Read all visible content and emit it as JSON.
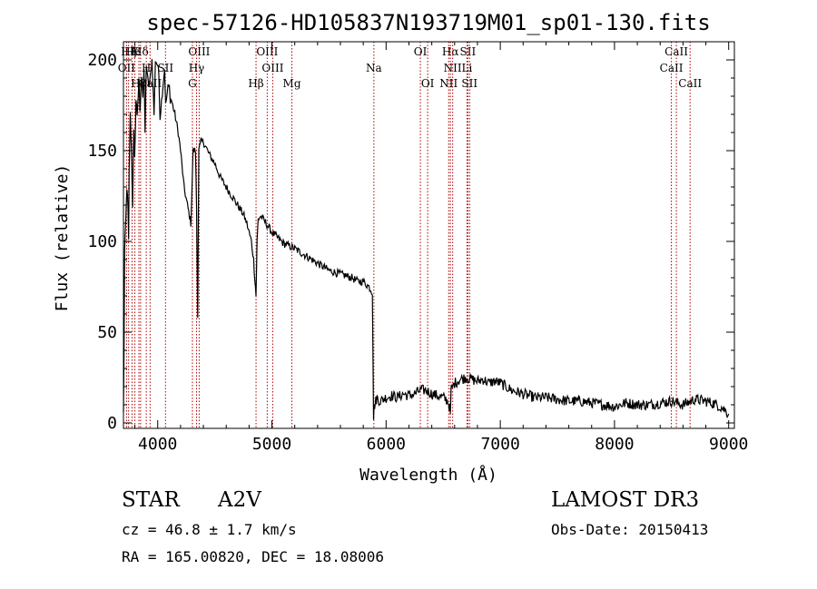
{
  "chart_data": {
    "type": "line",
    "title": "spec-57126-HD105837N193719M01_sp01-130.fits",
    "xlabel": "Wavelength (Å)",
    "ylabel": "Flux (relative)",
    "xlim": [
      3700,
      9050
    ],
    "ylim": [
      -3,
      210
    ],
    "x_ticks": [
      4000,
      5000,
      6000,
      7000,
      8000,
      9000
    ],
    "y_ticks": [
      0,
      50,
      100,
      150,
      200
    ],
    "series": [
      {
        "name": "flux",
        "x": [
          3700,
          3705,
          3710,
          3720,
          3730,
          3740,
          3745,
          3750,
          3760,
          3770,
          3780,
          3790,
          3798,
          3810,
          3820,
          3835,
          3845,
          3860,
          3870,
          3880,
          3889,
          3900,
          3920,
          3935,
          3950,
          3968,
          3980,
          4000,
          4010,
          4020,
          4040,
          4060,
          4070,
          4090,
          4102,
          4110,
          4120,
          4150,
          4180,
          4200,
          4230,
          4260,
          4290,
          4310,
          4330,
          4340,
          4350,
          4360,
          4380,
          4400,
          4450,
          4500,
          4550,
          4600,
          4650,
          4700,
          4750,
          4780,
          4800,
          4820,
          4840,
          4850,
          4861,
          4870,
          4880,
          4900,
          4950,
          5000,
          5100,
          5200,
          5300,
          5400,
          5500,
          5600,
          5700,
          5750,
          5800,
          5850,
          5880,
          5890,
          5895,
          5900,
          5910,
          5920,
          5930,
          5950,
          6000,
          6050,
          6100,
          6150,
          6200,
          6250,
          6300,
          6350,
          6400,
          6450,
          6500,
          6540,
          6560,
          6563,
          6570,
          6600,
          6650,
          6700,
          6750,
          6800,
          6850,
          6900,
          6950,
          7000,
          7050,
          7100,
          7200,
          7300,
          7400,
          7500,
          7600,
          7700,
          7800,
          7900,
          8000,
          8100,
          8200,
          8300,
          8400,
          8500,
          8600,
          8700,
          8800,
          8900,
          8950,
          9000
        ],
        "y": [
          5,
          40,
          95,
          110,
          130,
          118,
          100,
          140,
          170,
          150,
          120,
          160,
          145,
          178,
          170,
          188,
          172,
          192,
          180,
          195,
          160,
          198,
          185,
          190,
          200,
          170,
          200,
          197,
          192,
          168,
          182,
          195,
          175,
          185,
          185,
          178,
          178,
          170,
          160,
          150,
          130,
          120,
          110,
          150,
          150,
          120,
          60,
          150,
          155,
          155,
          148,
          143,
          135,
          130,
          125,
          120,
          115,
          110,
          105,
          100,
          90,
          80,
          70,
          100,
          112,
          114,
          110,
          105,
          99,
          96,
          92,
          88,
          84,
          82,
          80,
          78,
          78,
          75,
          72,
          3,
          8,
          10,
          12,
          14,
          13,
          12,
          14,
          15,
          14,
          16,
          15,
          16,
          18,
          18,
          16,
          15,
          14,
          12,
          8,
          5,
          18,
          22,
          24,
          25,
          24,
          23,
          24,
          22,
          23,
          22,
          20,
          18,
          16,
          14,
          14,
          13,
          12,
          12,
          11,
          10,
          9,
          11,
          10,
          10,
          11,
          12,
          10,
          13,
          12,
          10,
          8,
          5
        ]
      }
    ],
    "lines": [
      {
        "label": "Hζ",
        "x": 3745,
        "row": 0,
        "color": "#b00000"
      },
      {
        "label": "Hε",
        "x": 3775,
        "row": 0,
        "color": "#b00000"
      },
      {
        "label": "K",
        "x": 3800,
        "row": 0,
        "color": "#b00000"
      },
      {
        "label": "Hδ",
        "x": 3850,
        "row": 0,
        "color": "#b00000"
      },
      {
        "label": "OIII",
        "x": 4363,
        "row": 0,
        "color": "#b00000"
      },
      {
        "label": "OIII",
        "x": 4959,
        "row": 0,
        "color": "#b00000"
      },
      {
        "label": "OI",
        "x": 6300,
        "row": 0,
        "color": "#b00000"
      },
      {
        "label": "Hα",
        "x": 6563,
        "row": 0,
        "color": "#b00000"
      },
      {
        "label": "SII",
        "x": 6716,
        "row": 0,
        "color": "#b00000"
      },
      {
        "label": "CaII",
        "x": 8542,
        "row": 0,
        "color": "#b00000"
      },
      {
        "label": "OII",
        "x": 3727,
        "row": 1,
        "color": "#b00000"
      },
      {
        "label": "H",
        "x": 3900,
        "row": 1,
        "color": "#b00000"
      },
      {
        "label": "SII",
        "x": 4068,
        "row": 1,
        "color": "#b00000"
      },
      {
        "label": "Hγ",
        "x": 4340,
        "row": 1,
        "color": "#b00000"
      },
      {
        "label": "OIII",
        "x": 5007,
        "row": 1,
        "color": "#b00000"
      },
      {
        "label": "Na",
        "x": 5893,
        "row": 1,
        "color": "#b00000"
      },
      {
        "label": "NII",
        "x": 6583,
        "row": 1,
        "color": "#b00000"
      },
      {
        "label": "Li",
        "x": 6708,
        "row": 1,
        "color": "#b00000"
      },
      {
        "label": "CaII",
        "x": 8498,
        "row": 1,
        "color": "#b00000"
      },
      {
        "label": "CaII",
        "x": 3933,
        "row": 2,
        "color": "#b00000"
      },
      {
        "label": "Hη",
        "x": 3835,
        "row": 2,
        "color": "#b00000"
      },
      {
        "label": "G",
        "x": 4304,
        "row": 2,
        "color": "#b00000"
      },
      {
        "label": "Hβ",
        "x": 4861,
        "row": 2,
        "color": "#b00000"
      },
      {
        "label": "Mg",
        "x": 5175,
        "row": 2,
        "color": "#b00000"
      },
      {
        "label": "OI",
        "x": 6364,
        "row": 2,
        "color": "#b00000"
      },
      {
        "label": "NII",
        "x": 6548,
        "row": 2,
        "color": "#b00000"
      },
      {
        "label": "SII",
        "x": 6731,
        "row": 2,
        "color": "#b00000"
      },
      {
        "label": "CaII",
        "x": 8662,
        "row": 2,
        "color": "#b00000"
      }
    ]
  },
  "info": {
    "class": "STAR",
    "subclass": "A2V",
    "survey": "LAMOST DR3",
    "cz": "cz = 46.8 ± 1.7 km/s",
    "obs_date": "Obs-Date: 20150413",
    "radec": "RA = 165.00820, DEC =  18.08006"
  }
}
